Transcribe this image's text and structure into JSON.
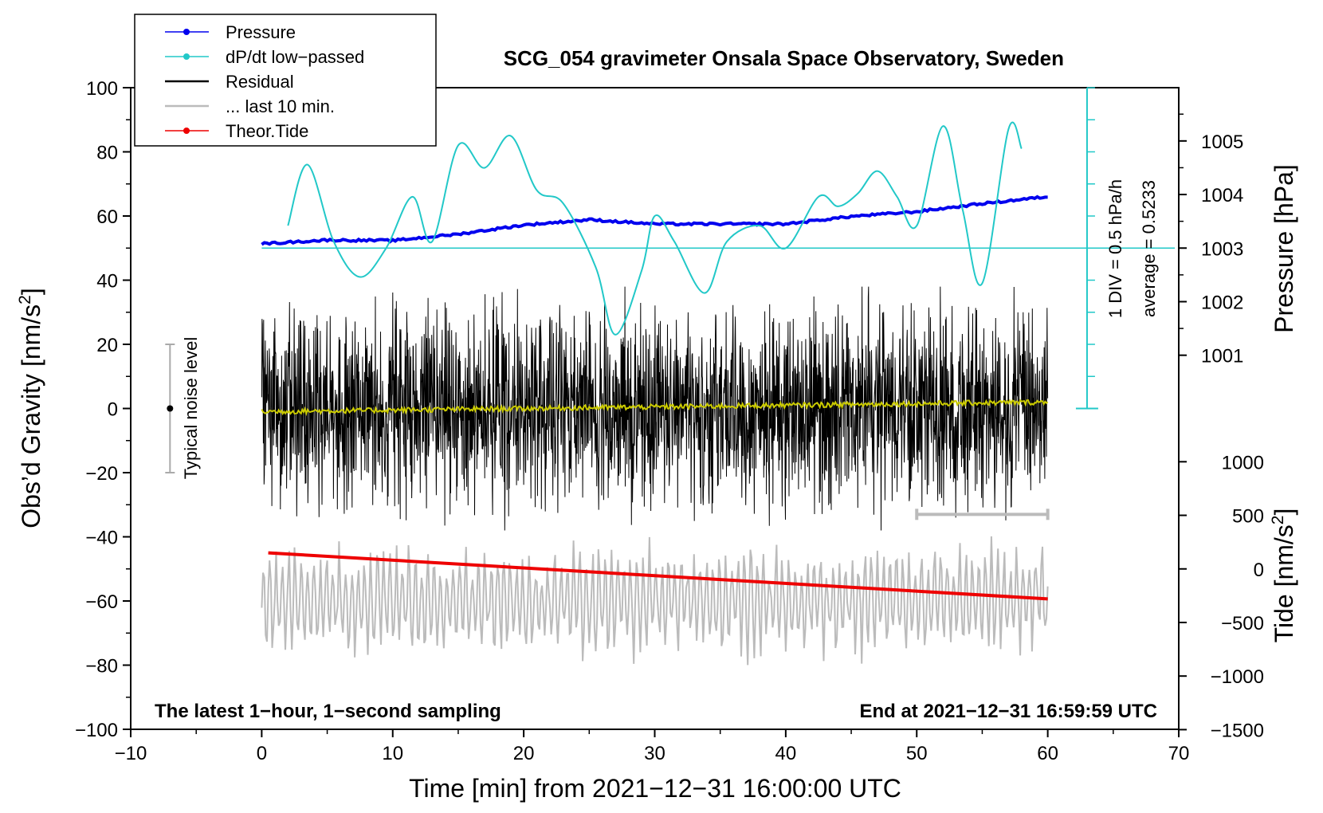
{
  "chart_data": {
    "type": "line",
    "title": "SCG_054 gravimeter Onsala Space Observatory, Sweden",
    "xlabel": "Time [min] from 2021−12−31 16:00:00 UTC",
    "ylabel_left_pre": "Obs’d Gravity [nm/s",
    "ylabel_left_sup": "2",
    "ylabel_left_post": "]",
    "ylabel_right_pressure": "Pressure [hPa]",
    "ylabel_right_tide_pre": "Tide [nm/s",
    "ylabel_right_tide_sup": "2",
    "ylabel_right_tide_post": "]",
    "xlim": [
      -10,
      70
    ],
    "ylim_left": [
      -100,
      100
    ],
    "x_ticks": [
      "−10",
      "0",
      "10",
      "20",
      "30",
      "40",
      "50",
      "60",
      "70"
    ],
    "y_ticks_left": [
      "100",
      "80",
      "60",
      "40",
      "20",
      "0",
      "−20",
      "−40",
      "−60",
      "−80",
      "−100"
    ],
    "pressure_axis": {
      "values": [
        1001,
        1002,
        1003,
        1004,
        1005
      ],
      "labels": [
        "1001",
        "1002",
        "1003",
        "1004",
        "1005"
      ]
    },
    "tide_axis": {
      "values": [
        1000,
        500,
        0,
        -500,
        -1000,
        -1500
      ],
      "labels": [
        "1000",
        "500",
        "0",
        "−500",
        "−1000",
        "−1500"
      ]
    },
    "legend": [
      {
        "label": "Pressure",
        "color": "#0000ee",
        "style": "line-dot"
      },
      {
        "label": "dP/dt low−passed",
        "color": "#22c8c8",
        "style": "line-dot"
      },
      {
        "label": "Residual",
        "color": "#000000",
        "style": "line"
      },
      {
        "label": "... last 10 min.",
        "color": "#bbbbbb",
        "style": "line"
      },
      {
        "label": "Theor.Tide",
        "color": "#ee0000",
        "style": "line-dot"
      }
    ],
    "legend_position": "top-left",
    "annotations": {
      "div_label": "1 DIV = 0.5 hPa/h",
      "average_label": "average = 0.5233",
      "noise_label": "Typical noise level",
      "footer_left": "The latest 1−hour, 1−second sampling",
      "footer_right": "End at 2021−12−31 16:59:59 UTC"
    },
    "series": [
      {
        "name": "Pressure",
        "color": "#0000ee",
        "units": "hPa",
        "x": [
          0,
          5,
          10,
          15,
          20,
          25,
          30,
          35,
          40,
          45,
          50,
          55,
          60
        ],
        "y": [
          1003.08,
          1003.15,
          1003.14,
          1003.26,
          1003.43,
          1003.53,
          1003.45,
          1003.45,
          1003.45,
          1003.59,
          1003.68,
          1003.83,
          1003.96
        ]
      },
      {
        "name": "dP/dt low-passed",
        "color": "#22c8c8",
        "units": "gravity-axis",
        "x": [
          2,
          3.5,
          5.5,
          7.5,
          9.5,
          11.5,
          13,
          15,
          17,
          19,
          21,
          23,
          25.5,
          27,
          29,
          30,
          31.5,
          33.8,
          35.5,
          38,
          40,
          42.5,
          44,
          45.5,
          47,
          48.5,
          50,
          52,
          53.5,
          55,
          57,
          58
        ],
        "y": [
          57,
          76,
          52,
          41,
          50,
          66,
          52,
          82,
          75,
          85,
          68,
          64,
          44,
          23,
          43,
          60,
          52,
          36,
          52,
          57,
          50,
          66,
          63,
          67,
          74,
          66,
          57,
          88,
          62,
          39,
          87,
          81
        ]
      },
      {
        "name": "Residual trend",
        "color": "#cccc00",
        "units": "gravity-axis",
        "x": [
          0,
          10,
          20,
          30,
          40,
          50,
          60
        ],
        "y": [
          -1,
          -1,
          0,
          0,
          1,
          1,
          2
        ]
      },
      {
        "name": "Theor.Tide",
        "color": "#ee0000",
        "units": "nm/s2 (tide axis)",
        "x": [
          0.5,
          60
        ],
        "y": [
          150,
          -280
        ]
      }
    ],
    "residual_amplitude_nm_s2": 38,
    "last10_bar_minutes": [
      50,
      60
    ]
  }
}
